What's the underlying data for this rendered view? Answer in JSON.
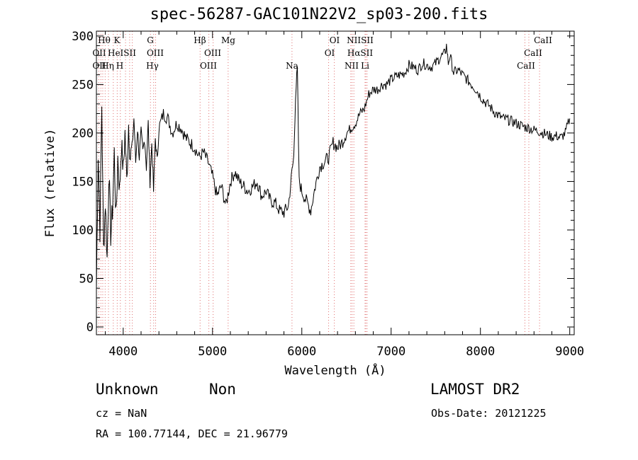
{
  "chart_data": {
    "type": "line",
    "title": "spec-56287-GAC101N22V2_sp03-200.fits",
    "xlabel": "Wavelength (Å)",
    "ylabel": "Flux (relative)",
    "xlim": [
      3700,
      9050
    ],
    "ylim": [
      -8,
      305
    ],
    "xticks": [
      4000,
      5000,
      6000,
      7000,
      8000,
      9000
    ],
    "yticks": [
      0,
      50,
      100,
      150,
      200,
      250,
      300
    ],
    "grid": false,
    "series": [
      {
        "x": [
          3700,
          3720,
          3740,
          3760,
          3780,
          3800,
          3820,
          3840,
          3860,
          3880,
          3900,
          3920,
          3940,
          3960,
          3980,
          4000,
          4020,
          4040,
          4060,
          4080,
          4100,
          4120,
          4140,
          4160,
          4180,
          4200,
          4220,
          4240,
          4260,
          4280,
          4300,
          4320,
          4340,
          4360,
          4380,
          4400,
          4450,
          4500,
          4550,
          4600,
          4650,
          4700,
          4750,
          4800,
          4850,
          4900,
          4950,
          5000,
          5050,
          5100,
          5150,
          5180,
          5200,
          5250,
          5300,
          5350,
          5400,
          5450,
          5500,
          5550,
          5600,
          5650,
          5700,
          5750,
          5800,
          5850,
          5890,
          5910,
          5930,
          5950,
          5970,
          6000,
          6050,
          6100,
          6150,
          6200,
          6250,
          6300,
          6350,
          6400,
          6450,
          6500,
          6550,
          6600,
          6650,
          6700,
          6750,
          6800,
          6850,
          6900,
          6950,
          7000,
          7050,
          7100,
          7150,
          7200,
          7250,
          7300,
          7350,
          7400,
          7450,
          7500,
          7550,
          7600,
          7620,
          7640,
          7660,
          7700,
          7750,
          7800,
          7850,
          7900,
          7950,
          8000,
          8050,
          8100,
          8150,
          8200,
          8250,
          8300,
          8350,
          8400,
          8450,
          8500,
          8550,
          8600,
          8650,
          8700,
          8750,
          8800,
          8850,
          8900,
          8950,
          9000
        ],
        "y": [
          40,
          180,
          100,
          230,
          80,
          130,
          70,
          160,
          95,
          120,
          180,
          110,
          175,
          140,
          190,
          160,
          200,
          150,
          210,
          175,
          185,
          215,
          170,
          205,
          175,
          200,
          180,
          195,
          165,
          210,
          150,
          190,
          140,
          195,
          170,
          205,
          220,
          215,
          200,
          210,
          205,
          195,
          190,
          185,
          175,
          180,
          170,
          155,
          135,
          145,
          125,
          140,
          150,
          160,
          150,
          145,
          140,
          145,
          150,
          135,
          140,
          130,
          128,
          120,
          118,
          125,
          160,
          175,
          240,
          265,
          150,
          140,
          130,
          120,
          145,
          165,
          170,
          175,
          190,
          185,
          190,
          200,
          205,
          210,
          220,
          225,
          240,
          245,
          245,
          250,
          250,
          255,
          258,
          260,
          262,
          270,
          268,
          265,
          272,
          270,
          268,
          272,
          278,
          282,
          290,
          272,
          280,
          262,
          265,
          260,
          255,
          250,
          245,
          238,
          232,
          228,
          222,
          218,
          215,
          214,
          212,
          210,
          208,
          206,
          205,
          203,
          202,
          200,
          198,
          196,
          197,
          195,
          200,
          215
        ]
      }
    ],
    "lines": [
      {
        "row": 1,
        "labels": [
          "Hθ",
          "K",
          "G",
          "Hβ",
          "Mg",
          "OI",
          "NIISII",
          "CaII"
        ]
      },
      {
        "row": 2,
        "labels": [
          "OII",
          "HeISII",
          "OIII",
          "OIII",
          "OI",
          "HαSII",
          "CaII"
        ]
      },
      {
        "row": 3,
        "labels": [
          "OII",
          "Hη",
          "H",
          "Hγ",
          "OIII",
          "Na",
          "NII",
          "Li",
          "CaII"
        ]
      }
    ]
  },
  "info": {
    "class": "Unknown",
    "subclass": "Non",
    "survey": "LAMOST DR2",
    "cz": "cz = NaN",
    "obs_date": "Obs-Date: 20121225",
    "coords": "RA = 100.77144, DEC =  21.96779"
  }
}
